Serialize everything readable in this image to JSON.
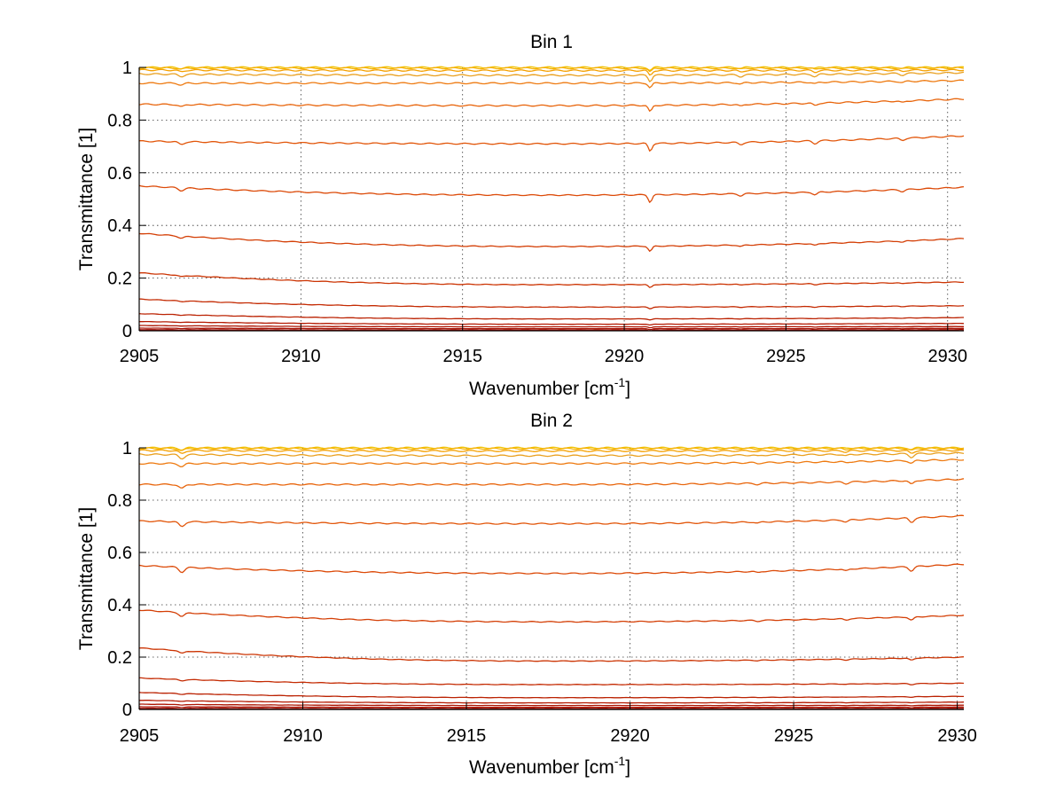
{
  "chart_data": [
    {
      "type": "line",
      "title": "Bin 1",
      "xlabel": "Wavenumber [cm",
      "xlabel_superscript": "-1",
      "xlabel_suffix": "]",
      "ylabel": "Transmittance [1]",
      "xlim": [
        2905,
        2930.5
      ],
      "ylim": [
        0,
        1
      ],
      "xticks": [
        "2905",
        "2910",
        "2915",
        "2920",
        "2925",
        "2930"
      ],
      "yticks": [
        "0",
        "0.2",
        "0.4",
        "0.6",
        "0.8",
        "1"
      ],
      "grid": true,
      "absorption_lines": [
        {
          "x": 2906.3,
          "w": 0.12,
          "relative_depth": 0.025
        },
        {
          "x": 2920.8,
          "w": 0.08,
          "relative_depth": 0.07
        },
        {
          "x": 2923.6,
          "w": 0.1,
          "relative_depth": 0.02
        },
        {
          "x": 2925.9,
          "w": 0.1,
          "relative_depth": 0.025
        },
        {
          "x": 2928.6,
          "w": 0.1,
          "relative_depth": 0.018
        }
      ],
      "series": [
        {
          "start": 1.0,
          "mid": 1.0,
          "end": 1.0,
          "color": "#f2c200"
        },
        {
          "start": 0.998,
          "mid": 0.997,
          "end": 0.998,
          "color": "#f5b000"
        },
        {
          "start": 0.99,
          "mid": 0.988,
          "end": 0.99,
          "color": "#f5a000"
        },
        {
          "start": 0.975,
          "mid": 0.97,
          "end": 0.98,
          "color": "#e9a020"
        },
        {
          "start": 0.94,
          "mid": 0.94,
          "end": 0.95,
          "color": "#ee7a10"
        },
        {
          "start": 0.86,
          "mid": 0.855,
          "end": 0.88,
          "color": "#e8650c"
        },
        {
          "start": 0.72,
          "mid": 0.71,
          "end": 0.74,
          "color": "#e2560a"
        },
        {
          "start": 0.55,
          "mid": 0.515,
          "end": 0.545,
          "color": "#dc4a08"
        },
        {
          "start": 0.37,
          "mid": 0.32,
          "end": 0.35,
          "color": "#d43f06"
        },
        {
          "start": 0.22,
          "mid": 0.175,
          "end": 0.185,
          "color": "#cc3504"
        },
        {
          "start": 0.12,
          "mid": 0.09,
          "end": 0.095,
          "color": "#c42b03"
        },
        {
          "start": 0.065,
          "mid": 0.045,
          "end": 0.05,
          "color": "#bb2202"
        },
        {
          "start": 0.035,
          "mid": 0.025,
          "end": 0.028,
          "color": "#b41a02"
        },
        {
          "start": 0.02,
          "mid": 0.015,
          "end": 0.016,
          "color": "#ad1401"
        },
        {
          "start": 0.01,
          "mid": 0.008,
          "end": 0.009,
          "color": "#a60e00"
        },
        {
          "start": 0.004,
          "mid": 0.003,
          "end": 0.004,
          "color": "#a00900"
        }
      ]
    },
    {
      "type": "line",
      "title": "Bin 2",
      "xlabel": "Wavenumber [cm",
      "xlabel_superscript": "-1",
      "xlabel_suffix": "]",
      "ylabel": "Transmittance [1]",
      "xlim": [
        2905,
        2930.2
      ],
      "ylim": [
        0,
        1
      ],
      "xticks": [
        "2905",
        "2910",
        "2915",
        "2920",
        "2925",
        "2930"
      ],
      "yticks": [
        "0",
        "0.2",
        "0.4",
        "0.6",
        "0.8",
        "1"
      ],
      "grid": true,
      "absorption_lines": [
        {
          "x": 2906.3,
          "w": 0.12,
          "relative_depth": 0.045
        },
        {
          "x": 2923.9,
          "w": 0.1,
          "relative_depth": 0.012
        },
        {
          "x": 2926.6,
          "w": 0.1,
          "relative_depth": 0.018
        },
        {
          "x": 2928.6,
          "w": 0.1,
          "relative_depth": 0.04
        }
      ],
      "series": [
        {
          "start": 1.0,
          "mid": 1.0,
          "end": 1.0,
          "color": "#f2c200"
        },
        {
          "start": 0.998,
          "mid": 0.997,
          "end": 0.998,
          "color": "#f5b000"
        },
        {
          "start": 0.99,
          "mid": 0.988,
          "end": 0.99,
          "color": "#f5a000"
        },
        {
          "start": 0.975,
          "mid": 0.97,
          "end": 0.98,
          "color": "#e9a020"
        },
        {
          "start": 0.94,
          "mid": 0.94,
          "end": 0.955,
          "color": "#ee7a10"
        },
        {
          "start": 0.86,
          "mid": 0.86,
          "end": 0.88,
          "color": "#e8650c"
        },
        {
          "start": 0.72,
          "mid": 0.71,
          "end": 0.74,
          "color": "#e2560a"
        },
        {
          "start": 0.55,
          "mid": 0.52,
          "end": 0.555,
          "color": "#dc4a08"
        },
        {
          "start": 0.38,
          "mid": 0.335,
          "end": 0.36,
          "color": "#d43f06"
        },
        {
          "start": 0.235,
          "mid": 0.185,
          "end": 0.2,
          "color": "#cc3504"
        },
        {
          "start": 0.12,
          "mid": 0.095,
          "end": 0.1,
          "color": "#c42b03"
        },
        {
          "start": 0.065,
          "mid": 0.045,
          "end": 0.05,
          "color": "#bb2202"
        },
        {
          "start": 0.035,
          "mid": 0.025,
          "end": 0.028,
          "color": "#b41a02"
        },
        {
          "start": 0.02,
          "mid": 0.015,
          "end": 0.016,
          "color": "#ad1401"
        },
        {
          "start": 0.01,
          "mid": 0.008,
          "end": 0.009,
          "color": "#a60e00"
        },
        {
          "start": 0.004,
          "mid": 0.003,
          "end": 0.004,
          "color": "#a00900"
        }
      ]
    }
  ]
}
